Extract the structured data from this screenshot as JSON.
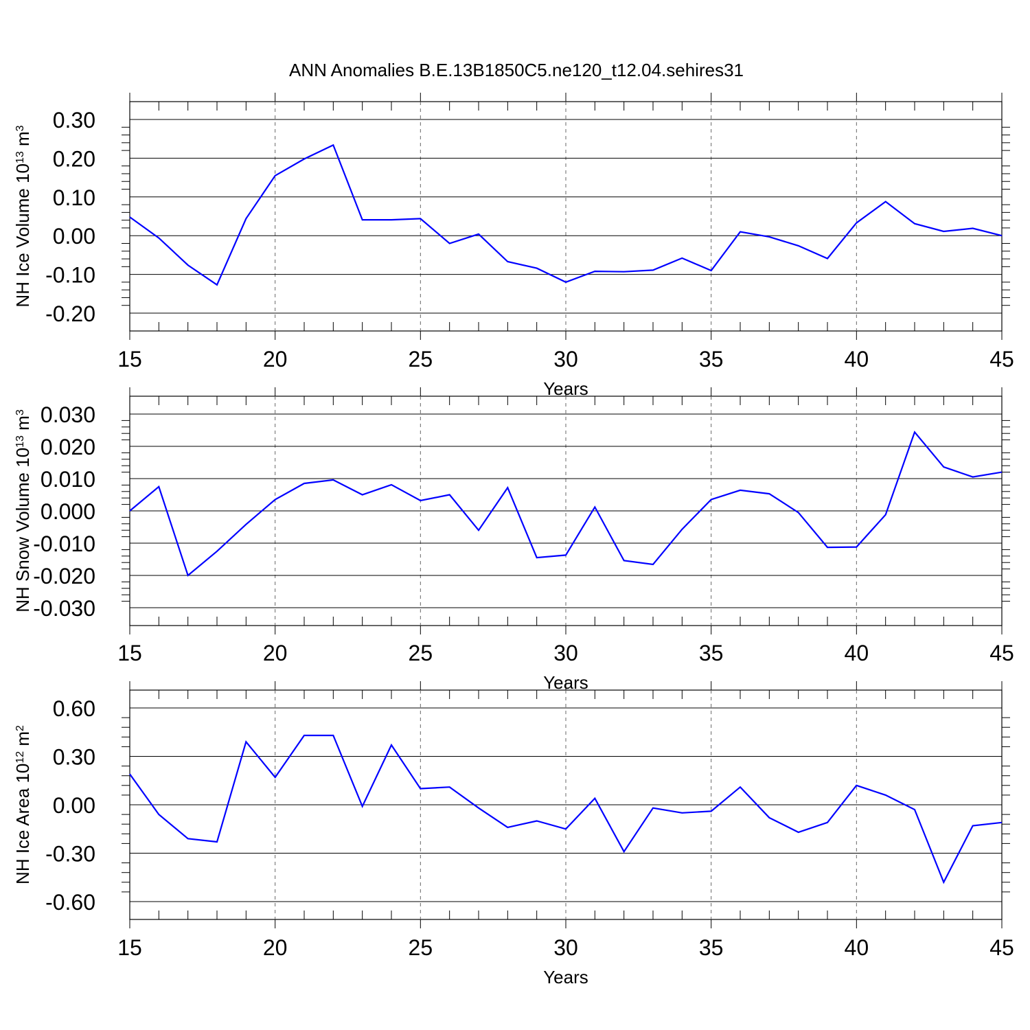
{
  "figure_title": "ANN Anomalies B.E.13B1850C5.ne120_t12.04.sehires31",
  "chart_data": [
    {
      "type": "line",
      "xlabel": "Years",
      "ylabel": "NH Ice Volume 10",
      "ylabel_exp": "13",
      "ylabel_unit": " m",
      "ylabel_unit_exp": "3",
      "xlim": [
        15,
        45
      ],
      "ylim": [
        -0.2,
        0.3
      ],
      "xticks": [
        15,
        20,
        25,
        30,
        35,
        40,
        45
      ],
      "xtick_labels": [
        "15",
        "20",
        "25",
        "30",
        "35",
        "40",
        "45"
      ],
      "yticks": [
        -0.2,
        -0.1,
        0.0,
        0.1,
        0.2,
        0.3
      ],
      "ytick_labels": [
        "-0.20",
        "-0.10",
        "0.00",
        "0.10",
        "0.20",
        "0.30"
      ],
      "grid": "vertical dashed at major x ticks",
      "series_color": "#0000ff",
      "x": [
        15,
        16,
        17,
        18,
        19,
        20,
        21,
        22,
        23,
        24,
        25,
        26,
        27,
        28,
        29,
        30,
        31,
        32,
        33,
        34,
        35,
        36,
        37,
        38,
        39,
        40,
        41,
        42,
        43,
        44,
        45
      ],
      "values": [
        0.048,
        -0.006,
        -0.076,
        -0.127,
        0.044,
        0.155,
        0.198,
        0.234,
        0.041,
        0.041,
        0.044,
        -0.02,
        0.004,
        -0.067,
        -0.084,
        -0.12,
        -0.092,
        -0.093,
        -0.089,
        -0.058,
        -0.09,
        0.01,
        -0.003,
        -0.026,
        -0.059,
        0.033,
        0.088,
        0.031,
        0.011,
        0.019,
        0.0
      ]
    },
    {
      "type": "line",
      "xlabel": "Years",
      "ylabel": "NH Snow Volume 10",
      "ylabel_exp": "13",
      "ylabel_unit": " m",
      "ylabel_unit_exp": "3",
      "xlim": [
        15,
        45
      ],
      "ylim": [
        -0.03,
        0.03
      ],
      "xticks": [
        15,
        20,
        25,
        30,
        35,
        40,
        45
      ],
      "xtick_labels": [
        "15",
        "20",
        "25",
        "30",
        "35",
        "40",
        "45"
      ],
      "yticks": [
        -0.03,
        -0.02,
        -0.01,
        0.0,
        0.01,
        0.02,
        0.03
      ],
      "ytick_labels": [
        "-0.030",
        "-0.020",
        "-0.010",
        "0.000",
        "0.010",
        "0.020",
        "0.030"
      ],
      "grid": "vertical dashed at major x ticks",
      "series_color": "#0000ff",
      "x": [
        15,
        16,
        17,
        18,
        19,
        20,
        21,
        22,
        23,
        24,
        25,
        26,
        27,
        28,
        29,
        30,
        31,
        32,
        33,
        34,
        35,
        36,
        37,
        38,
        39,
        40,
        41,
        42,
        43,
        44,
        45
      ],
      "values": [
        0.0,
        0.0075,
        -0.02,
        -0.0125,
        -0.0042,
        0.0035,
        0.0085,
        0.0096,
        0.005,
        0.0081,
        0.0032,
        0.005,
        -0.006,
        0.0072,
        -0.0145,
        -0.0137,
        0.0012,
        -0.0154,
        -0.0166,
        -0.0057,
        0.0035,
        0.0064,
        0.0053,
        -0.0005,
        -0.0113,
        -0.0112,
        -0.0012,
        0.0244,
        0.0136,
        0.0105,
        0.012
      ]
    },
    {
      "type": "line",
      "xlabel": "Years",
      "ylabel": "NH Ice Area 10",
      "ylabel_exp": "12",
      "ylabel_unit": " m",
      "ylabel_unit_exp": "2",
      "xlim": [
        15,
        45
      ],
      "ylim": [
        -0.6,
        0.6
      ],
      "xticks": [
        15,
        20,
        25,
        30,
        35,
        40,
        45
      ],
      "xtick_labels": [
        "15",
        "20",
        "25",
        "30",
        "35",
        "40",
        "45"
      ],
      "yticks": [
        -0.6,
        -0.3,
        0.0,
        0.3,
        0.6
      ],
      "ytick_labels": [
        "-0.60",
        "-0.30",
        "0.00",
        "0.30",
        "0.60"
      ],
      "grid": "vertical dashed at major x ticks",
      "series_color": "#0000ff",
      "x": [
        15,
        16,
        17,
        18,
        19,
        20,
        21,
        22,
        23,
        24,
        25,
        26,
        27,
        28,
        29,
        30,
        31,
        32,
        33,
        34,
        35,
        36,
        37,
        38,
        39,
        40,
        41,
        42,
        43,
        44,
        45
      ],
      "values": [
        0.19,
        -0.06,
        -0.21,
        -0.23,
        0.39,
        0.17,
        0.43,
        0.43,
        -0.01,
        0.37,
        0.1,
        0.11,
        -0.02,
        -0.14,
        -0.1,
        -0.15,
        0.04,
        -0.29,
        -0.02,
        -0.05,
        -0.04,
        0.11,
        -0.08,
        -0.17,
        -0.11,
        0.12,
        0.06,
        -0.03,
        -0.48,
        -0.13,
        -0.11
      ]
    }
  ]
}
